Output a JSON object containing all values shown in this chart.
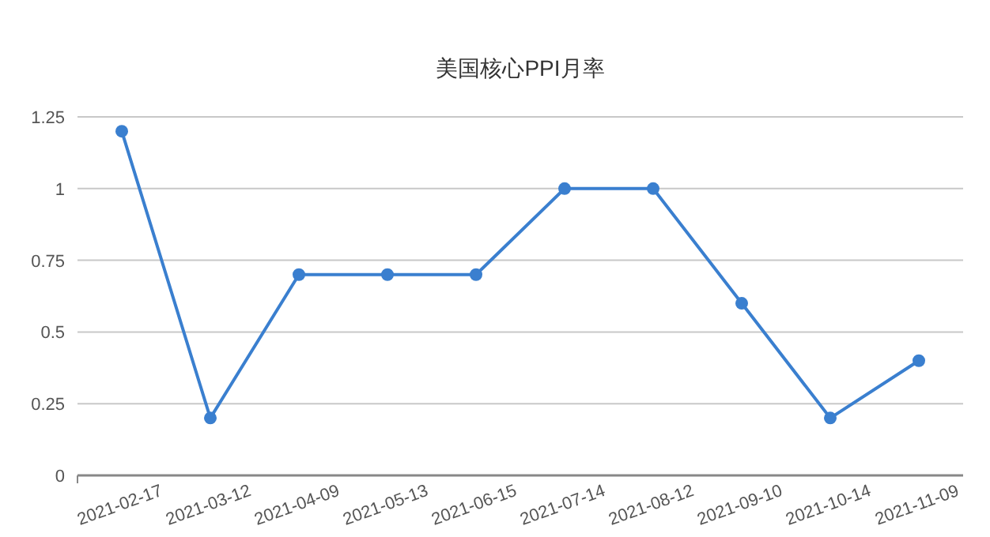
{
  "chart_data": {
    "type": "line",
    "title": "美国核心PPI月率",
    "categories": [
      "2021-02-17",
      "2021-03-12",
      "2021-04-09",
      "2021-05-13",
      "2021-06-15",
      "2021-07-14",
      "2021-08-12",
      "2021-09-10",
      "2021-10-14",
      "2021-11-09"
    ],
    "series": [
      {
        "color": "#3a7fcf",
        "values": [
          1.2,
          0.2,
          0.7,
          0.7,
          0.7,
          1.0,
          1.0,
          0.6,
          0.2,
          0.4
        ]
      }
    ],
    "ylim": [
      0,
      1.25
    ],
    "yticks": [
      0,
      0.25,
      0.5,
      0.75,
      1,
      1.25
    ],
    "grid": "y",
    "marker": "circle",
    "line_style": "solid"
  }
}
